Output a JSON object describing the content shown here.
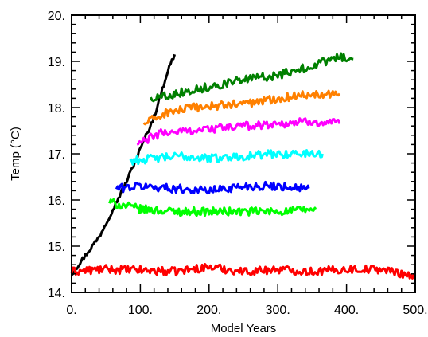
{
  "chart_data": {
    "type": "line",
    "title": "",
    "xlabel": "Model Years",
    "ylabel": "Temp (°C)",
    "xlim": [
      0,
      500
    ],
    "ylim": [
      14,
      20
    ],
    "x_ticks": [
      0,
      100,
      200,
      300,
      400,
      500
    ],
    "x_tick_labels": [
      "0.",
      "100.",
      "200.",
      "300.",
      "400.",
      "500."
    ],
    "y_ticks": [
      14,
      15,
      16,
      17,
      18,
      19,
      20
    ],
    "y_tick_labels": [
      "14.",
      "15.",
      "16.",
      "17.",
      "18.",
      "19.",
      "20."
    ],
    "grid": false,
    "series": [
      {
        "color": "#000000",
        "x": [
          0,
          20,
          40,
          60,
          80,
          100,
          120,
          140,
          150
        ],
        "y": [
          14.4,
          14.8,
          15.2,
          15.8,
          16.4,
          17.1,
          17.8,
          18.8,
          19.15
        ]
      },
      {
        "color": "#ff0000",
        "x": [
          0,
          50,
          100,
          150,
          200,
          250,
          300,
          350,
          400,
          450,
          500
        ],
        "y": [
          14.45,
          14.5,
          14.48,
          14.45,
          14.55,
          14.45,
          14.5,
          14.45,
          14.5,
          14.5,
          14.35
        ]
      },
      {
        "color": "#00ff00",
        "x": [
          55,
          100,
          150,
          200,
          250,
          300,
          355
        ],
        "y": [
          15.95,
          15.8,
          15.75,
          15.75,
          15.75,
          15.75,
          15.8
        ]
      },
      {
        "color": "#0000ff",
        "x": [
          65,
          100,
          150,
          200,
          250,
          300,
          345
        ],
        "y": [
          16.25,
          16.3,
          16.25,
          16.2,
          16.3,
          16.3,
          16.25
        ]
      },
      {
        "color": "#00ffff",
        "x": [
          85,
          120,
          160,
          200,
          250,
          300,
          365
        ],
        "y": [
          16.85,
          16.9,
          16.95,
          16.9,
          16.95,
          17.0,
          17.0
        ]
      },
      {
        "color": "#ff00ff",
        "x": [
          95,
          130,
          170,
          210,
          250,
          300,
          350,
          390
        ],
        "y": [
          17.2,
          17.45,
          17.5,
          17.55,
          17.6,
          17.65,
          17.7,
          17.65
        ]
      },
      {
        "color": "#ff8000",
        "x": [
          105,
          140,
          180,
          220,
          260,
          300,
          350,
          390
        ],
        "y": [
          17.65,
          17.9,
          18.0,
          18.05,
          18.1,
          18.2,
          18.3,
          18.3
        ]
      },
      {
        "color": "#008000",
        "x": [
          115,
          150,
          200,
          250,
          300,
          350,
          390,
          410
        ],
        "y": [
          18.2,
          18.3,
          18.45,
          18.6,
          18.7,
          18.9,
          19.1,
          19.05
        ]
      }
    ]
  }
}
